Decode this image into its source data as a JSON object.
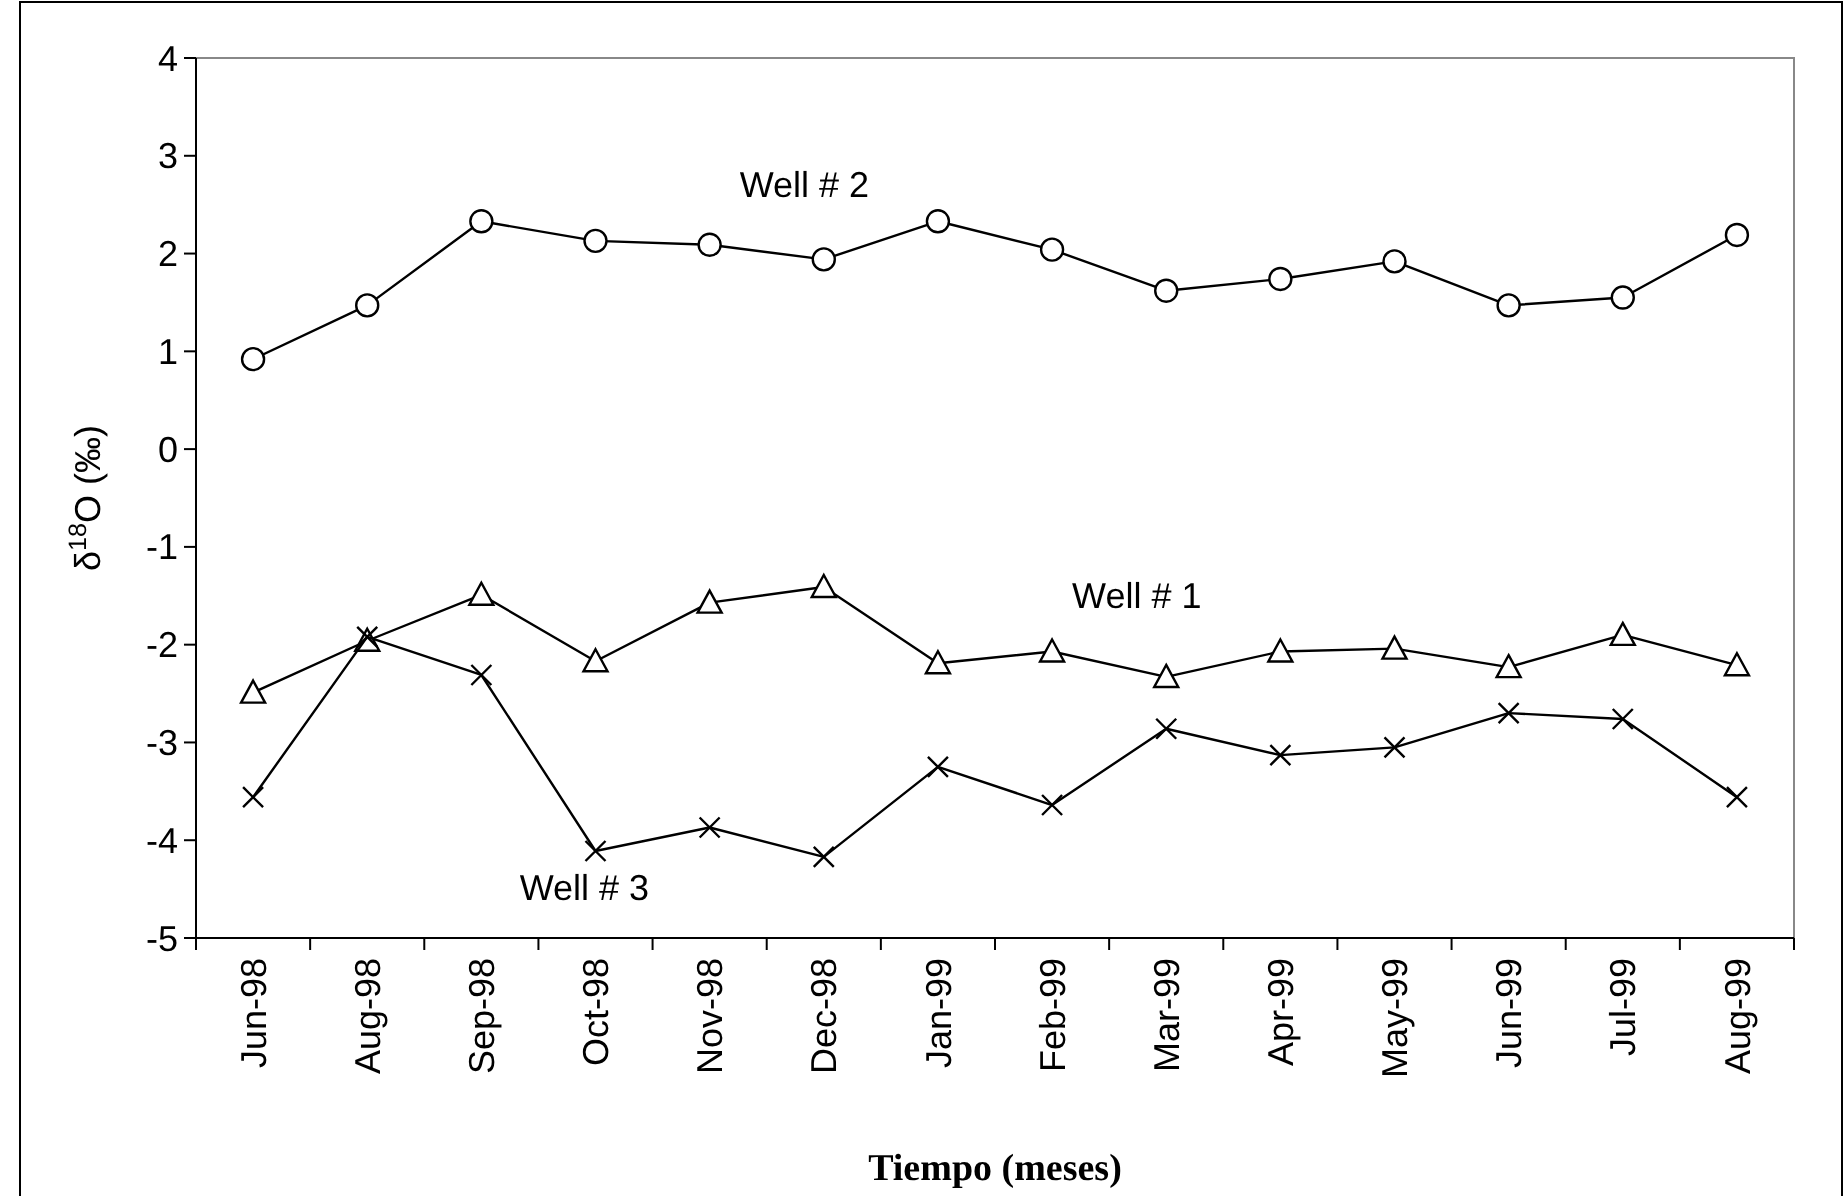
{
  "chart_data": {
    "type": "line",
    "xlabel": "Tiempo (meses)",
    "ylabel": "δ$^{18}$O (‰)",
    "categories": [
      "Jun-98",
      "Aug-98",
      "Sep-98",
      "Oct-98",
      "Nov-98",
      "Dec-98",
      "Jan-99",
      "Feb-99",
      "Mar-99",
      "Apr-99",
      "May-99",
      "Jun-99",
      "Jul-99",
      "Aug-99"
    ],
    "ylim": [
      -5,
      4
    ],
    "yticks": [
      -5,
      -4,
      -3,
      -2,
      -1,
      0,
      1,
      2,
      3,
      4
    ],
    "grid": false,
    "legend": false,
    "series": [
      {
        "name": "Well # 1",
        "color": "#000000",
        "marker": "triangle",
        "values": [
          -2.49,
          -1.96,
          -1.49,
          -2.17,
          -1.57,
          -1.41,
          -2.19,
          -2.07,
          -2.33,
          -2.07,
          -2.04,
          -2.23,
          -1.9,
          -2.21
        ]
      },
      {
        "name": "Well # 2",
        "color": "#000000",
        "marker": "circle",
        "values": [
          0.92,
          1.47,
          2.33,
          2.13,
          2.09,
          1.94,
          2.33,
          2.04,
          1.62,
          1.74,
          1.92,
          1.47,
          1.55,
          2.19
        ]
      },
      {
        "name": "Well # 3",
        "color": "#000000",
        "marker": "cross",
        "values": [
          -3.56,
          -1.92,
          -2.31,
          -4.11,
          -3.87,
          -4.17,
          -3.25,
          -3.64,
          -2.86,
          -3.13,
          -3.05,
          -2.7,
          -2.76,
          -3.56
        ]
      }
    ]
  }
}
